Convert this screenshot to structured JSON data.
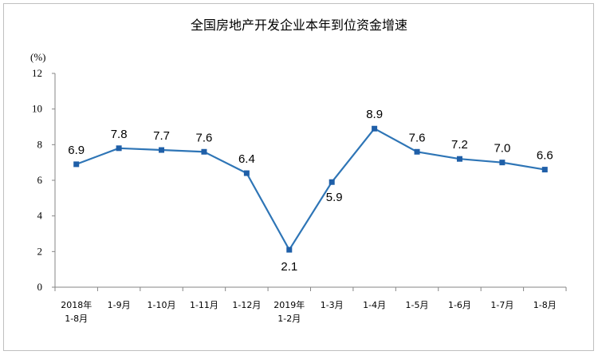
{
  "chart_data": {
    "type": "line",
    "title": "全国房地产开发企业本年到位资金增速",
    "y_unit": "(%)",
    "ylim": [
      0,
      12
    ],
    "y_ticks": [
      0,
      2,
      4,
      6,
      8,
      10,
      12
    ],
    "grid": false,
    "categories": [
      [
        "2018年",
        "1-8月"
      ],
      [
        "1-9月"
      ],
      [
        "1-10月"
      ],
      [
        "1-11月"
      ],
      [
        "1-12月"
      ],
      [
        "2019年",
        "1-2月"
      ],
      [
        "1-3月"
      ],
      [
        "1-4月"
      ],
      [
        "1-5月"
      ],
      [
        "1-6月"
      ],
      [
        "1-7月"
      ],
      [
        "1-8月"
      ]
    ],
    "values": [
      6.9,
      7.8,
      7.7,
      7.6,
      6.4,
      2.1,
      5.9,
      8.9,
      7.6,
      7.2,
      7.0,
      6.6
    ],
    "data_labels": [
      "6.9",
      "7.8",
      "7.7",
      "7.6",
      "6.4",
      "2.1",
      "5.9",
      "8.9",
      "7.6",
      "7.2",
      "7.0",
      "6.6"
    ],
    "line_color": "#2e75b6",
    "marker_color": "#1f5fa8"
  }
}
